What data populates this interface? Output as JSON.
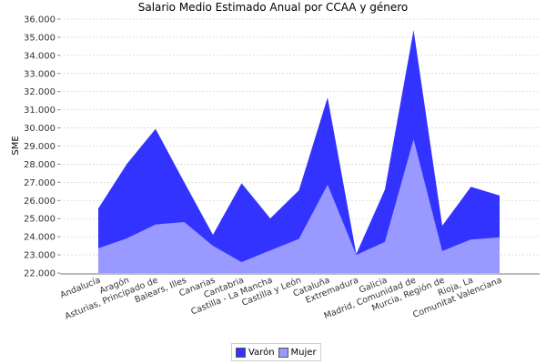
{
  "title": "Salario Medio Estimado Anual por CCAA y género",
  "legend": [
    {
      "label": "Varón",
      "color": "#3333ff"
    },
    {
      "label": "Mujer",
      "color": "#9999ff"
    }
  ],
  "chart_data": {
    "type": "area",
    "title": "Salario Medio Estimado Anual por CCAA y género",
    "xlabel": "",
    "ylabel": "SME",
    "ylim": [
      22000,
      36000
    ],
    "yticks": [
      "22.000",
      "23.000",
      "24.000",
      "25.000",
      "26.000",
      "27.000",
      "28.000",
      "29.000",
      "30.000",
      "31.000",
      "32.000",
      "33.000",
      "34.000",
      "35.000",
      "36.000"
    ],
    "grid": true,
    "legend_position": "bottom",
    "categories": [
      "Andalucía",
      "Aragón",
      "Asturias, Principado de",
      "Balears, Illes",
      "Canarias",
      "Cantabria",
      "Castilla - La Mancha",
      "Castilla y León",
      "Cataluña",
      "Extremadura",
      "Galicia",
      "Madrid, Comunidad de",
      "Murcia, Región de",
      "Rioja, La",
      "Comunitat Valenciana"
    ],
    "series": [
      {
        "name": "Varón",
        "color": "#3333ff",
        "values": [
          25560,
          28020,
          29950,
          27000,
          24110,
          26950,
          25010,
          26560,
          31680,
          23050,
          26600,
          35400,
          24610,
          26750,
          26270
        ]
      },
      {
        "name": "Mujer",
        "color": "#9999ff",
        "values": [
          23360,
          23910,
          24680,
          24810,
          23500,
          22600,
          23250,
          23880,
          26870,
          23000,
          23720,
          29380,
          23210,
          23850,
          23960
        ]
      }
    ]
  }
}
